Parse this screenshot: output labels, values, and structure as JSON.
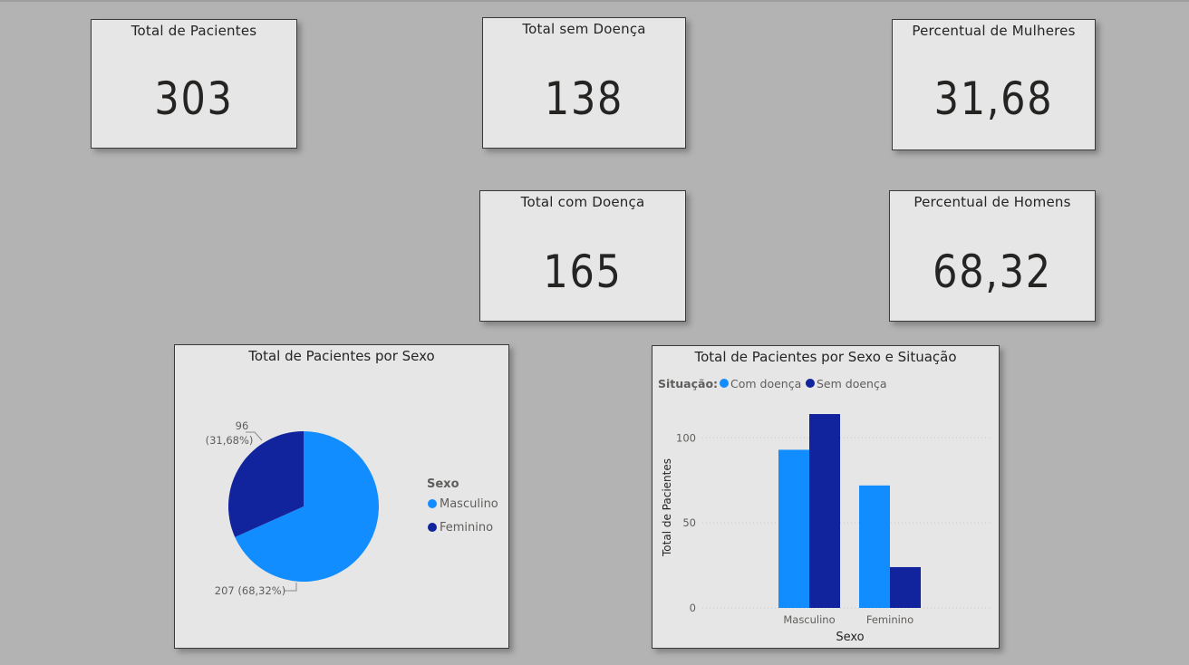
{
  "kpis": {
    "total_pacientes": {
      "title": "Total de Pacientes",
      "value": "303"
    },
    "total_sem_doenca": {
      "title": "Total sem Doença",
      "value": "138"
    },
    "percentual_mulheres": {
      "title": "Percentual de Mulheres",
      "value": "31,68"
    },
    "total_com_doenca": {
      "title": "Total com Doença",
      "value": "165"
    },
    "percentual_homens": {
      "title": "Percentual de Homens",
      "value": "68,32"
    }
  },
  "colors": {
    "light_blue": "#118dff",
    "dark_blue": "#12239e"
  },
  "chart_data": [
    {
      "type": "pie",
      "title": "Total de Pacientes por Sexo",
      "legend_title": "Sexo",
      "legend_position": "right",
      "slices": [
        {
          "label": "Masculino",
          "value": 207,
          "data_label": "207 (68,32%)",
          "color": "#118dff"
        },
        {
          "label": "Feminino",
          "value": 96,
          "data_label_line1": "96",
          "data_label_line2": "(31,68%)",
          "color": "#12239e"
        }
      ]
    },
    {
      "type": "bar",
      "title": "Total de Pacientes por Sexo e Situação",
      "legend_title": "Situação:",
      "legend_position": "top-left",
      "xlabel": "Sexo",
      "ylabel": "Total de Pacientes",
      "categories": [
        "Masculino",
        "Feminino"
      ],
      "yticks": [
        "0",
        "50",
        "100"
      ],
      "ylim": [
        0,
        122
      ],
      "grid": true,
      "series": [
        {
          "name": "Com doença",
          "values": [
            93,
            72
          ],
          "color": "#118dff"
        },
        {
          "name": "Sem doença",
          "values": [
            114,
            24
          ],
          "color": "#12239e"
        }
      ]
    }
  ]
}
